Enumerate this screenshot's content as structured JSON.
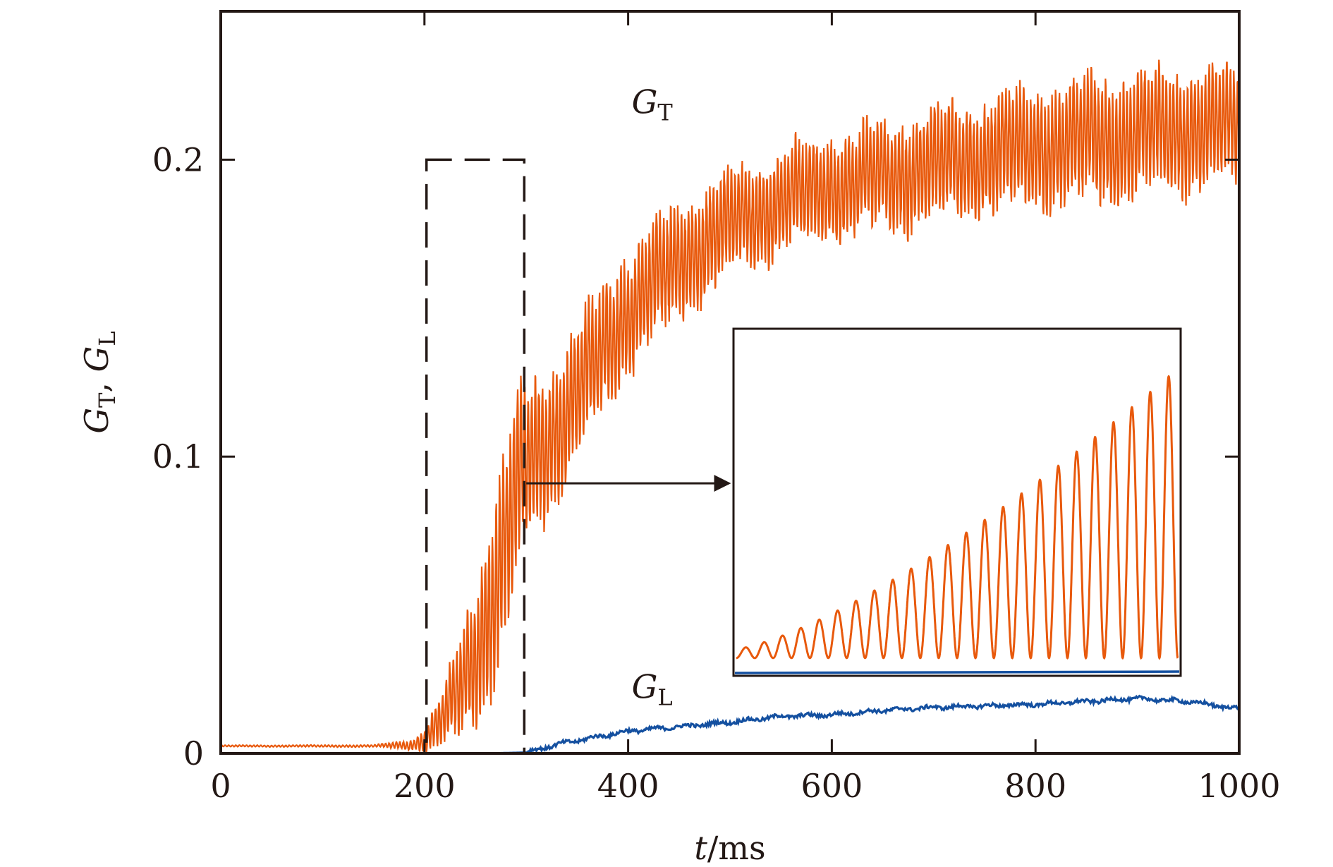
{
  "chart_data": {
    "type": "line",
    "title": "",
    "xlabel": {
      "var": "t",
      "unit": "ms",
      "text": "t/ms"
    },
    "ylabel": {
      "text": "GT, GL",
      "parts": [
        {
          "base": "G",
          "sub": "T"
        },
        {
          "sep": ", "
        },
        {
          "base": "G",
          "sub": "L"
        }
      ]
    },
    "xlim": [
      0,
      1000
    ],
    "ylim": [
      0,
      0.25
    ],
    "xticks": [
      "0",
      "200",
      "400",
      "600",
      "800",
      "1000"
    ],
    "yticks": [
      "0",
      "0.1",
      "0.2"
    ],
    "xtick_values": [
      0,
      200,
      400,
      600,
      800,
      1000
    ],
    "ytick_values": [
      0,
      0.1,
      0.2
    ],
    "grid": false,
    "series": [
      {
        "name": "GT",
        "label_base": "G",
        "label_sub": "T",
        "color": "#e8590c",
        "oscillation_period_ms": 3.5,
        "envelope": {
          "x": [
            0,
            150,
            190,
            205,
            220,
            240,
            260,
            275,
            290,
            300,
            320,
            340,
            360,
            380,
            400,
            450,
            500,
            550,
            600,
            650,
            700,
            750,
            800,
            850,
            900,
            950,
            1000
          ],
          "center": [
            0.0025,
            0.0025,
            0.003,
            0.006,
            0.012,
            0.025,
            0.045,
            0.065,
            0.085,
            0.097,
            0.105,
            0.115,
            0.127,
            0.138,
            0.15,
            0.166,
            0.178,
            0.186,
            0.191,
            0.194,
            0.198,
            0.201,
            0.204,
            0.206,
            0.208,
            0.21,
            0.211
          ],
          "amplitude": [
            0.0003,
            0.0004,
            0.002,
            0.006,
            0.012,
            0.022,
            0.032,
            0.038,
            0.036,
            0.032,
            0.028,
            0.027,
            0.026,
            0.025,
            0.024,
            0.022,
            0.02,
            0.02,
            0.02,
            0.021,
            0.022,
            0.022,
            0.023,
            0.024,
            0.024,
            0.023,
            0.022
          ]
        }
      },
      {
        "name": "GL",
        "label_base": "G",
        "label_sub": "L",
        "color": "#1450a0",
        "x": [
          0,
          260,
          300,
          330,
          360,
          400,
          450,
          500,
          550,
          600,
          650,
          700,
          750,
          800,
          850,
          900,
          950,
          1000
        ],
        "y": [
          0,
          0,
          0.0003,
          0.003,
          0.005,
          0.0075,
          0.009,
          0.0105,
          0.0125,
          0.013,
          0.0145,
          0.0155,
          0.016,
          0.0165,
          0.0175,
          0.0185,
          0.0175,
          0.015
        ]
      }
    ],
    "annotations": {
      "dashed_box": {
        "x": [
          202,
          298
        ],
        "y": [
          0,
          0.2
        ]
      },
      "arrow": {
        "from_x": 300,
        "y": 0.091,
        "target": "inset"
      },
      "gt_label_at": {
        "x": 400,
        "y": 0.218
      },
      "gl_label_at": {
        "x": 400,
        "y": 0.021
      }
    },
    "inset": {
      "zoom_of_x": [
        202,
        298
      ],
      "description_series": [
        {
          "name": "GT",
          "cycles": 24,
          "amp_start": 0.03,
          "amp_end": 0.95,
          "baseline": 0.0
        },
        {
          "name": "GL",
          "level": 0.0
        }
      ]
    }
  }
}
